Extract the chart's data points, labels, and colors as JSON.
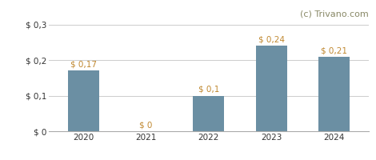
{
  "categories": [
    "2020",
    "2021",
    "2022",
    "2023",
    "2024"
  ],
  "values": [
    0.17,
    0.0,
    0.1,
    0.24,
    0.21
  ],
  "bar_color": "#6b8fa3",
  "bar_labels": [
    "$ 0,17",
    "$ 0",
    "$ 0,1",
    "$ 0,24",
    "$ 0,21"
  ],
  "ytick_labels": [
    "$ 0",
    "$ 0,1",
    "$ 0,2",
    "$ 0,3"
  ],
  "ytick_values": [
    0,
    0.1,
    0.2,
    0.3
  ],
  "ylim": [
    0,
    0.315
  ],
  "watermark": "(c) Trivano.com",
  "watermark_color": "#888866",
  "bar_label_color": "#c08830",
  "background_color": "#ffffff",
  "grid_color": "#cccccc",
  "label_fontsize": 7.5,
  "tick_fontsize": 7.5,
  "watermark_fontsize": 8,
  "bar_width": 0.5
}
